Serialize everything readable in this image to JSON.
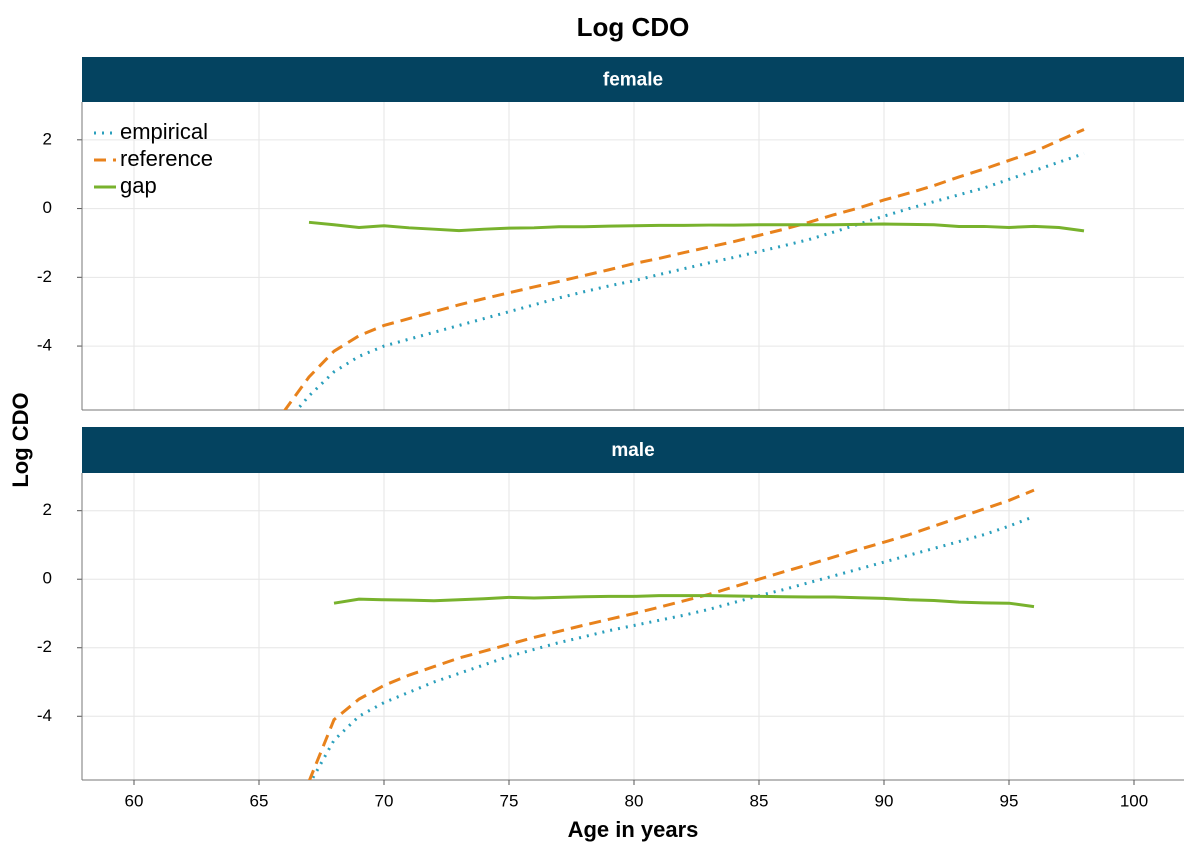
{
  "chart_data": {
    "type": "line",
    "title": "Log CDO",
    "xlabel": "Age in years",
    "ylabel": "Log CDO",
    "xlim": [
      57.92,
      102
    ],
    "xticks": [
      60,
      65,
      70,
      75,
      80,
      85,
      90,
      95,
      100
    ],
    "ylim": [
      -5.86,
      3.1
    ],
    "yticks": [
      -4,
      -2,
      0,
      2
    ],
    "grid": true,
    "legend": "top-left",
    "strip_color": "#044360",
    "panels": [
      {
        "label": "female",
        "x": [
          66,
          67,
          68,
          69,
          70,
          71,
          72,
          73,
          74,
          75,
          76,
          77,
          78,
          79,
          80,
          81,
          82,
          83,
          84,
          85,
          86,
          87,
          88,
          89,
          90,
          91,
          92,
          93,
          94,
          95,
          96,
          97,
          98
        ],
        "series": [
          {
            "name": "empirical",
            "color": "#2a9fbc",
            "dash": "dotted",
            "values": [
              -6.3,
              -5.45,
              -4.75,
              -4.3,
              -4.0,
              -3.8,
              -3.6,
              -3.4,
              -3.2,
              -3.0,
              -2.8,
              -2.6,
              -2.42,
              -2.25,
              -2.1,
              -1.92,
              -1.75,
              -1.58,
              -1.42,
              -1.25,
              -1.08,
              -0.9,
              -0.68,
              -0.45,
              -0.22,
              0.0,
              0.2,
              0.4,
              0.6,
              0.85,
              1.1,
              1.35,
              1.6
            ]
          },
          {
            "name": "reference",
            "color": "#e8821c",
            "dash": "dashed",
            "values": [
              -5.9,
              -4.9,
              -4.15,
              -3.7,
              -3.4,
              -3.2,
              -3.0,
              -2.8,
              -2.62,
              -2.45,
              -2.28,
              -2.12,
              -1.95,
              -1.78,
              -1.6,
              -1.45,
              -1.28,
              -1.12,
              -0.96,
              -0.78,
              -0.6,
              -0.4,
              -0.18,
              0.02,
              0.25,
              0.45,
              0.67,
              0.92,
              1.15,
              1.4,
              1.65,
              1.98,
              2.3
            ]
          },
          {
            "name": "gap",
            "color": "#78b22d",
            "dash": "solid",
            "values": [
              null,
              -0.4,
              -0.47,
              -0.55,
              -0.5,
              -0.56,
              -0.6,
              -0.64,
              -0.6,
              -0.57,
              -0.56,
              -0.53,
              -0.53,
              -0.51,
              -0.5,
              -0.49,
              -0.49,
              -0.48,
              -0.48,
              -0.47,
              -0.47,
              -0.47,
              -0.47,
              -0.46,
              -0.45,
              -0.46,
              -0.47,
              -0.52,
              -0.52,
              -0.55,
              -0.52,
              -0.55,
              -0.65
            ]
          }
        ]
      },
      {
        "label": "male",
        "x": [
          67,
          68,
          69,
          70,
          71,
          72,
          73,
          74,
          75,
          76,
          77,
          78,
          79,
          80,
          81,
          82,
          83,
          84,
          85,
          86,
          87,
          88,
          89,
          90,
          91,
          92,
          93,
          94,
          95,
          96
        ],
        "series": [
          {
            "name": "empirical",
            "color": "#2a9fbc",
            "dash": "dotted",
            "values": [
              -6.0,
              -4.7,
              -4.0,
              -3.6,
              -3.3,
              -3.0,
              -2.75,
              -2.5,
              -2.25,
              -2.05,
              -1.85,
              -1.68,
              -1.5,
              -1.35,
              -1.2,
              -1.05,
              -0.88,
              -0.68,
              -0.48,
              -0.3,
              -0.1,
              0.1,
              0.3,
              0.5,
              0.7,
              0.9,
              1.1,
              1.3,
              1.55,
              1.83
            ]
          },
          {
            "name": "reference",
            "color": "#e8821c",
            "dash": "dashed",
            "values": [
              -5.9,
              -4.1,
              -3.5,
              -3.1,
              -2.8,
              -2.55,
              -2.3,
              -2.1,
              -1.9,
              -1.7,
              -1.52,
              -1.34,
              -1.17,
              -1.0,
              -0.82,
              -0.63,
              -0.44,
              -0.22,
              0.0,
              0.22,
              0.43,
              0.65,
              0.87,
              1.08,
              1.3,
              1.55,
              1.8,
              2.05,
              2.3,
              2.6
            ]
          },
          {
            "name": "gap",
            "color": "#78b22d",
            "dash": "solid",
            "values": [
              null,
              -0.7,
              -0.58,
              -0.6,
              -0.61,
              -0.63,
              -0.6,
              -0.57,
              -0.53,
              -0.55,
              -0.53,
              -0.51,
              -0.5,
              -0.5,
              -0.48,
              -0.48,
              -0.48,
              -0.49,
              -0.5,
              -0.51,
              -0.52,
              -0.52,
              -0.54,
              -0.56,
              -0.6,
              -0.62,
              -0.67,
              -0.69,
              -0.7,
              -0.8
            ]
          }
        ]
      }
    ]
  }
}
